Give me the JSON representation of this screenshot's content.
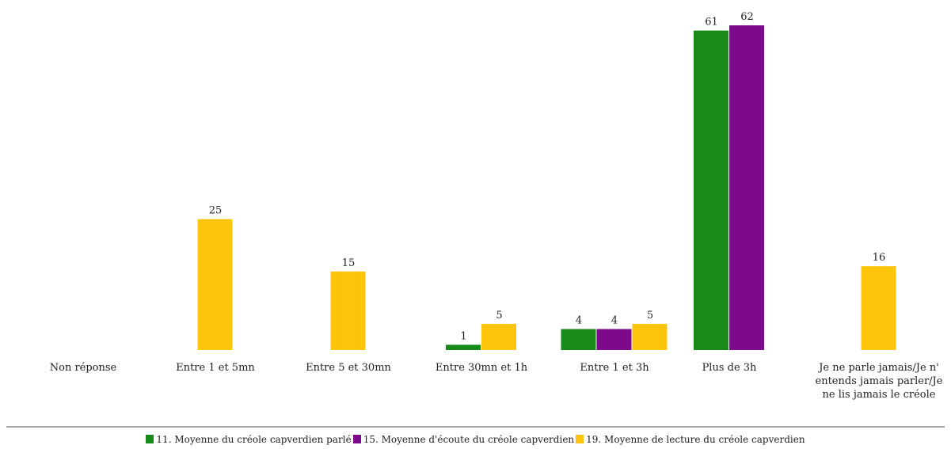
{
  "chart_data": {
    "type": "bar",
    "categories": [
      "Non réponse",
      "Entre 1 et 5mn",
      "Entre 5 et 30mn",
      "Entre 30mn et 1h",
      "Entre 1 et 3h",
      "Plus de 3h",
      "Je ne parle jamais/Je n' entends jamais parler/Je ne lis jamais le créole"
    ],
    "series": [
      {
        "name": "11. Moyenne du créole capverdien parlé",
        "color": "#178a17",
        "values": [
          0,
          0,
          0,
          1,
          4,
          61,
          0
        ]
      },
      {
        "name": "15. Moyenne d'écoute du créole capverdien",
        "color": "#7d0a8a",
        "values": [
          0,
          0,
          0,
          0,
          4,
          62,
          0
        ]
      },
      {
        "name": "19. Moyenne de lecture du créole capverdien",
        "color": "#fcc40a",
        "values": [
          0,
          25,
          15,
          5,
          5,
          0,
          16
        ]
      }
    ],
    "data_labels": true,
    "ylim": [
      0,
      62
    ],
    "grid": false,
    "legend_position": "bottom"
  }
}
